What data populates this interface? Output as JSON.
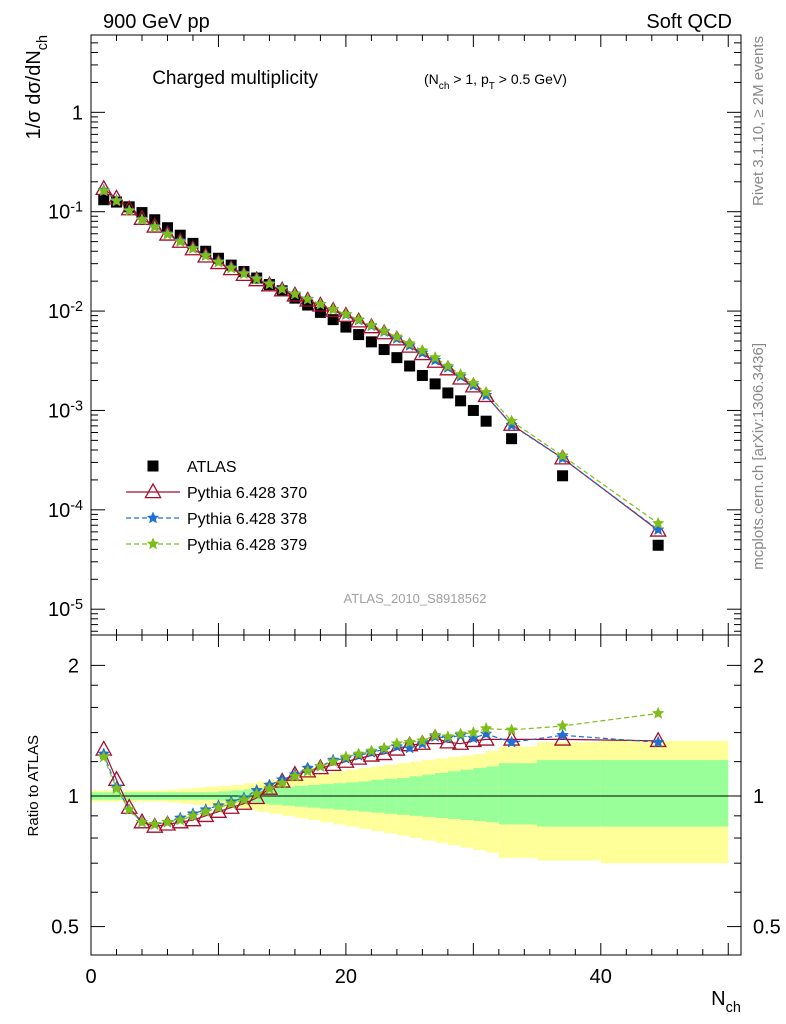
{
  "header": {
    "energy_label": "900 GeV pp",
    "process_label": "Soft QCD",
    "side_label_top": "Rivet 3.1.10, ≥ 2M events",
    "side_label_bottom": "mcplots.cern.ch [arXiv:1306.3436]",
    "analysis_id": "ATLAS_2010_S8918562"
  },
  "chart_data": [
    {
      "type": "scatter",
      "panel": "main",
      "title": "Charged multiplicity",
      "title_cuts": "(N_ch > 1, p_T > 0.5 GeV)",
      "ylabel": "1/σ dσ/dN_ch",
      "xlabel": "",
      "yscale": "log",
      "xlim": [
        0,
        51
      ],
      "ylim": [
        5.5e-06,
        6
      ],
      "y_tick_labels": [
        "10^-5",
        "10^-4",
        "10^-3",
        "10^-2",
        "10^-1",
        "1"
      ],
      "legend_position": "lower-left",
      "series": [
        {
          "name": "ATLAS",
          "style": "square",
          "color": "#000000",
          "x": [
            1,
            2,
            3,
            4,
            5,
            6,
            7,
            8,
            9,
            10,
            11,
            12,
            13,
            14,
            15,
            16,
            17,
            18,
            19,
            20,
            21,
            22,
            23,
            24,
            25,
            26,
            27,
            28,
            29,
            30,
            31,
            33,
            37,
            44.5
          ],
          "y": [
            0.132,
            0.125,
            0.112,
            0.098,
            0.083,
            0.069,
            0.058,
            0.048,
            0.04,
            0.034,
            0.029,
            0.025,
            0.0215,
            0.0185,
            0.016,
            0.0135,
            0.0115,
            0.0097,
            0.0082,
            0.0069,
            0.0058,
            0.0049,
            0.0041,
            0.0034,
            0.0028,
            0.00225,
            0.00185,
            0.0015,
            0.00125,
            0.001,
            0.00078,
            0.00052,
            0.00022,
            4.4e-05
          ]
        },
        {
          "name": "Pythia 6.428 370",
          "style": "triangle-solid",
          "color": "#a40e2c",
          "x": [
            1,
            2,
            3,
            4,
            5,
            6,
            7,
            8,
            9,
            10,
            11,
            12,
            13,
            14,
            15,
            16,
            17,
            18,
            19,
            20,
            21,
            22,
            23,
            24,
            25,
            26,
            27,
            28,
            29,
            30,
            31,
            33,
            37,
            44.5
          ],
          "y": [
            0.17,
            0.136,
            0.106,
            0.085,
            0.071,
            0.059,
            0.05,
            0.042,
            0.0355,
            0.0305,
            0.0265,
            0.0232,
            0.0205,
            0.0182,
            0.0162,
            0.0144,
            0.0128,
            0.0114,
            0.0101,
            0.009,
            0.0079,
            0.0069,
            0.006,
            0.0052,
            0.0044,
            0.0037,
            0.0031,
            0.0026,
            0.0021,
            0.00175,
            0.0014,
            0.00072,
            0.00033,
            6.2e-05
          ]
        },
        {
          "name": "Pythia 6.428 378",
          "style": "star-dashed",
          "color": "#1f6fd6",
          "x": [
            1,
            2,
            3,
            4,
            5,
            6,
            7,
            8,
            9,
            10,
            11,
            12,
            13,
            14,
            15,
            16,
            17,
            18,
            19,
            20,
            21,
            22,
            23,
            24,
            25,
            26,
            27,
            28,
            29,
            30,
            31,
            33,
            37,
            44.5
          ],
          "y": [
            0.165,
            0.13,
            0.103,
            0.084,
            0.071,
            0.06,
            0.051,
            0.043,
            0.0365,
            0.0315,
            0.0274,
            0.024,
            0.0213,
            0.0189,
            0.0168,
            0.0149,
            0.0132,
            0.0117,
            0.0104,
            0.0092,
            0.0081,
            0.0071,
            0.0062,
            0.0053,
            0.0045,
            0.0038,
            0.0032,
            0.0027,
            0.0022,
            0.00178,
            0.00142,
            0.00071,
            0.00033,
            6.3e-05
          ]
        },
        {
          "name": "Pythia 6.428 379",
          "style": "star-dashed",
          "color": "#7ebe1b",
          "x": [
            1,
            2,
            3,
            4,
            5,
            6,
            7,
            8,
            9,
            10,
            11,
            12,
            13,
            14,
            15,
            16,
            17,
            18,
            19,
            20,
            21,
            22,
            23,
            24,
            25,
            26,
            27,
            28,
            29,
            30,
            31,
            33,
            37,
            44.5
          ],
          "y": [
            0.162,
            0.128,
            0.102,
            0.083,
            0.07,
            0.059,
            0.05,
            0.0425,
            0.036,
            0.031,
            0.027,
            0.0237,
            0.021,
            0.0187,
            0.0166,
            0.0148,
            0.0131,
            0.0117,
            0.0104,
            0.0093,
            0.0082,
            0.0072,
            0.0063,
            0.0055,
            0.0047,
            0.004,
            0.0034,
            0.0028,
            0.0023,
            0.00188,
            0.00152,
            0.00078,
            0.00035,
            7.3e-05
          ]
        }
      ]
    },
    {
      "type": "scatter",
      "panel": "ratio",
      "title": "",
      "ylabel": "Ratio to ATLAS",
      "xlabel": "N_ch",
      "yscale": "log",
      "xlim": [
        0,
        51
      ],
      "ylim": [
        0.43,
        2.35
      ],
      "x_ticks": [
        0,
        20,
        40
      ],
      "y_ticks": [
        0.5,
        1,
        2
      ],
      "bands": {
        "edges": [
          0,
          1,
          2,
          3,
          4,
          5,
          6,
          7,
          8,
          9,
          10,
          11,
          12,
          13,
          14,
          15,
          16,
          17,
          18,
          19,
          20,
          21,
          22,
          23,
          24,
          25,
          26,
          27,
          28,
          29,
          30,
          31,
          32,
          35,
          40,
          50
        ],
        "inner_up": [
          1.02,
          1.02,
          1.02,
          1.02,
          1.02,
          1.02,
          1.02,
          1.02,
          1.02,
          1.02,
          1.025,
          1.03,
          1.035,
          1.04,
          1.045,
          1.05,
          1.055,
          1.06,
          1.065,
          1.07,
          1.075,
          1.08,
          1.09,
          1.095,
          1.1,
          1.11,
          1.12,
          1.13,
          1.14,
          1.15,
          1.16,
          1.17,
          1.19,
          1.21,
          1.21
        ],
        "inner_dn": [
          0.98,
          0.98,
          0.98,
          0.98,
          0.98,
          0.98,
          0.98,
          0.98,
          0.98,
          0.98,
          0.975,
          0.97,
          0.965,
          0.96,
          0.955,
          0.95,
          0.945,
          0.94,
          0.935,
          0.93,
          0.925,
          0.92,
          0.915,
          0.91,
          0.905,
          0.9,
          0.895,
          0.89,
          0.885,
          0.88,
          0.875,
          0.87,
          0.86,
          0.85,
          0.85
        ],
        "outer_up": [
          1.03,
          1.03,
          1.03,
          1.03,
          1.03,
          1.03,
          1.035,
          1.04,
          1.045,
          1.05,
          1.055,
          1.06,
          1.07,
          1.08,
          1.09,
          1.1,
          1.11,
          1.12,
          1.13,
          1.14,
          1.15,
          1.16,
          1.17,
          1.18,
          1.19,
          1.2,
          1.21,
          1.22,
          1.23,
          1.24,
          1.25,
          1.27,
          1.3,
          1.33,
          1.34
        ],
        "outer_dn": [
          0.97,
          0.97,
          0.97,
          0.97,
          0.97,
          0.97,
          0.965,
          0.96,
          0.955,
          0.95,
          0.945,
          0.94,
          0.93,
          0.92,
          0.91,
          0.9,
          0.89,
          0.88,
          0.87,
          0.86,
          0.85,
          0.84,
          0.83,
          0.82,
          0.81,
          0.8,
          0.79,
          0.78,
          0.77,
          0.76,
          0.75,
          0.74,
          0.72,
          0.71,
          0.7
        ]
      },
      "series": [
        {
          "name": "Pythia 6.428 370",
          "color": "#a40e2c",
          "x": [
            1,
            2,
            3,
            4,
            5,
            6,
            7,
            8,
            9,
            10,
            11,
            12,
            13,
            14,
            15,
            16,
            17,
            18,
            19,
            20,
            21,
            22,
            23,
            24,
            25,
            26,
            27,
            28,
            29,
            30,
            31,
            33,
            37,
            44.5
          ],
          "y": [
            1.28,
            1.09,
            0.94,
            0.87,
            0.85,
            0.86,
            0.87,
            0.88,
            0.9,
            0.92,
            0.94,
            0.96,
            0.99,
            1.04,
            1.08,
            1.12,
            1.14,
            1.16,
            1.18,
            1.2,
            1.22,
            1.24,
            1.25,
            1.28,
            1.31,
            1.32,
            1.36,
            1.33,
            1.32,
            1.34,
            1.35,
            1.35,
            1.35,
            1.34
          ]
        },
        {
          "name": "Pythia 6.428 378",
          "color": "#1f6fd6",
          "x": [
            1,
            2,
            3,
            4,
            5,
            6,
            7,
            8,
            9,
            10,
            11,
            12,
            13,
            14,
            15,
            16,
            17,
            18,
            19,
            20,
            21,
            22,
            23,
            24,
            25,
            26,
            27,
            28,
            29,
            30,
            31,
            33,
            37,
            44.5
          ],
          "y": [
            1.25,
            1.05,
            0.93,
            0.87,
            0.86,
            0.87,
            0.89,
            0.91,
            0.93,
            0.95,
            0.97,
            0.99,
            1.03,
            1.06,
            1.09,
            1.12,
            1.16,
            1.17,
            1.21,
            1.22,
            1.24,
            1.26,
            1.28,
            1.3,
            1.29,
            1.32,
            1.37,
            1.36,
            1.38,
            1.36,
            1.39,
            1.33,
            1.38,
            1.33
          ]
        },
        {
          "name": "Pythia 6.428 379",
          "color": "#7ebe1b",
          "x": [
            1,
            2,
            3,
            4,
            5,
            6,
            7,
            8,
            9,
            10,
            11,
            12,
            13,
            14,
            15,
            16,
            17,
            18,
            19,
            20,
            21,
            22,
            23,
            24,
            25,
            26,
            27,
            28,
            29,
            30,
            31,
            33,
            37,
            44.5
          ],
          "y": [
            1.23,
            1.04,
            0.93,
            0.87,
            0.86,
            0.87,
            0.88,
            0.9,
            0.92,
            0.94,
            0.96,
            0.98,
            1.01,
            1.04,
            1.07,
            1.11,
            1.14,
            1.17,
            1.2,
            1.23,
            1.25,
            1.27,
            1.29,
            1.32,
            1.33,
            1.34,
            1.38,
            1.37,
            1.39,
            1.4,
            1.43,
            1.42,
            1.45,
            1.55
          ]
        }
      ]
    }
  ]
}
